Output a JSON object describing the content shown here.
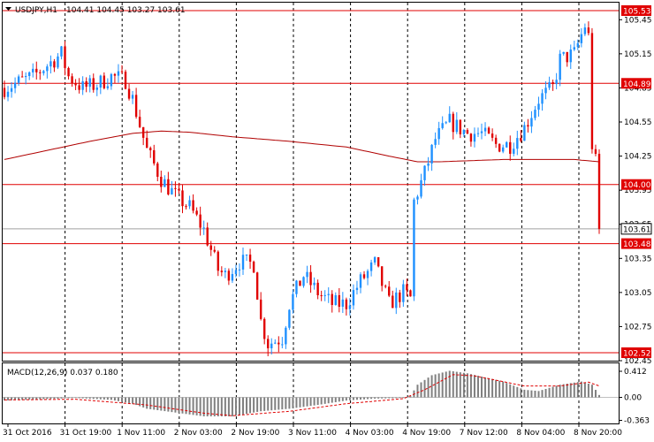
{
  "header": {
    "dropdown_icon": "triangle-down-icon",
    "symbol": "USDJPY,H1",
    "ohlc": "104.41 104.45 103.27 103.61"
  },
  "macd": {
    "label": "MACD(12,26,9) 0.037 0.180"
  },
  "colors": {
    "bull": "#1e90ff",
    "bear": "#e00000",
    "level_line": "#e00000",
    "ma_line": "#b00000",
    "price_tag_bg": "#e00000",
    "current_tag_bg": "#ffffff",
    "histogram": "#808080",
    "signal": "#e00000",
    "grid": "#000000"
  },
  "chart_data": {
    "type": "candlestick",
    "ylim": [
      102.45,
      105.6
    ],
    "price_ticks": [
      "105.45",
      "105.15",
      "104.85",
      "104.55",
      "104.25",
      "103.95",
      "103.65",
      "103.35",
      "103.05",
      "102.75",
      "102.45"
    ],
    "levels": [
      {
        "value": 105.53,
        "label": "105.53"
      },
      {
        "value": 104.89,
        "label": "104.89"
      },
      {
        "value": 104.0,
        "label": "104.00"
      },
      {
        "value": 103.48,
        "label": "103.48"
      },
      {
        "value": 102.52,
        "label": "102.52"
      }
    ],
    "current": {
      "value": 103.61,
      "label": "103.61"
    },
    "time_labels": [
      "31 Oct 2016",
      "31 Oct 19:00",
      "1 Nov 11:00",
      "2 Nov 03:00",
      "2 Nov 19:00",
      "3 Nov 11:00",
      "4 Nov 03:00",
      "4 Nov 19:00",
      "7 Nov 12:00",
      "8 Nov 04:00",
      "8 Nov 20:00"
    ],
    "anchors": [
      [
        0,
        104.85
      ],
      [
        4,
        104.9
      ],
      [
        8,
        104.95
      ],
      [
        12,
        105.05
      ],
      [
        16,
        105.15
      ],
      [
        18,
        104.95
      ],
      [
        22,
        104.85
      ],
      [
        26,
        104.88
      ],
      [
        30,
        104.95
      ],
      [
        34,
        104.92
      ],
      [
        36,
        104.75
      ],
      [
        40,
        104.3
      ],
      [
        44,
        104.05
      ],
      [
        48,
        103.9
      ],
      [
        52,
        103.8
      ],
      [
        56,
        103.6
      ],
      [
        60,
        103.25
      ],
      [
        62,
        103.2
      ],
      [
        66,
        103.32
      ],
      [
        70,
        103.3
      ],
      [
        72,
        102.8
      ],
      [
        74,
        102.6
      ],
      [
        78,
        102.65
      ],
      [
        80,
        102.95
      ],
      [
        84,
        103.2
      ],
      [
        88,
        103.05
      ],
      [
        92,
        102.95
      ],
      [
        96,
        102.95
      ],
      [
        100,
        103.15
      ],
      [
        104,
        103.3
      ],
      [
        108,
        102.95
      ],
      [
        112,
        103.05
      ],
      [
        114,
        103.0
      ],
      [
        115,
        103.85
      ],
      [
        118,
        104.1
      ],
      [
        121,
        104.4
      ],
      [
        125,
        104.55
      ],
      [
        130,
        104.45
      ],
      [
        134,
        104.45
      ],
      [
        138,
        104.35
      ],
      [
        142,
        104.35
      ],
      [
        146,
        104.5
      ],
      [
        150,
        104.75
      ],
      [
        154,
        104.85
      ],
      [
        156,
        105.1
      ],
      [
        160,
        105.15
      ],
      [
        163,
        105.4
      ],
      [
        164,
        105.3
      ],
      [
        165,
        104.35
      ],
      [
        166,
        104.2
      ],
      [
        167,
        103.61
      ]
    ],
    "ma_points": [
      [
        0,
        104.22
      ],
      [
        12,
        104.3
      ],
      [
        24,
        104.38
      ],
      [
        36,
        104.45
      ],
      [
        44,
        104.47
      ],
      [
        52,
        104.46
      ],
      [
        64,
        104.42
      ],
      [
        80,
        104.38
      ],
      [
        96,
        104.33
      ],
      [
        108,
        104.25
      ],
      [
        116,
        104.2
      ],
      [
        122,
        104.2
      ],
      [
        140,
        104.22
      ],
      [
        160,
        104.22
      ],
      [
        167,
        104.2
      ]
    ],
    "macd_range": [
      -0.363,
      0.412
    ],
    "macd_ticks": [
      {
        "value": 0.412,
        "label": "0.412"
      },
      {
        "value": 0.0,
        "label": "0.00"
      },
      {
        "value": -0.363,
        "label": "-0.363"
      }
    ],
    "macd_hist": [
      [
        0,
        -0.05
      ],
      [
        10,
        -0.03
      ],
      [
        20,
        -0.01
      ],
      [
        30,
        -0.04
      ],
      [
        36,
        -0.1
      ],
      [
        40,
        -0.18
      ],
      [
        48,
        -0.24
      ],
      [
        56,
        -0.3
      ],
      [
        64,
        -0.3
      ],
      [
        72,
        -0.22
      ],
      [
        80,
        -0.18
      ],
      [
        88,
        -0.12
      ],
      [
        96,
        -0.05
      ],
      [
        104,
        -0.02
      ],
      [
        112,
        -0.01
      ],
      [
        114,
        0.02
      ],
      [
        116,
        0.2
      ],
      [
        120,
        0.35
      ],
      [
        125,
        0.42
      ],
      [
        130,
        0.38
      ],
      [
        140,
        0.25
      ],
      [
        146,
        0.12
      ],
      [
        150,
        0.1
      ],
      [
        156,
        0.2
      ],
      [
        162,
        0.25
      ],
      [
        165,
        0.2
      ],
      [
        167,
        0.037
      ]
    ],
    "macd_signal": [
      [
        0,
        -0.04
      ],
      [
        20,
        -0.03
      ],
      [
        40,
        -0.12
      ],
      [
        56,
        -0.25
      ],
      [
        64,
        -0.29
      ],
      [
        80,
        -0.22
      ],
      [
        96,
        -0.1
      ],
      [
        112,
        -0.02
      ],
      [
        118,
        0.12
      ],
      [
        126,
        0.36
      ],
      [
        132,
        0.34
      ],
      [
        146,
        0.18
      ],
      [
        156,
        0.18
      ],
      [
        164,
        0.24
      ],
      [
        167,
        0.18
      ]
    ]
  }
}
